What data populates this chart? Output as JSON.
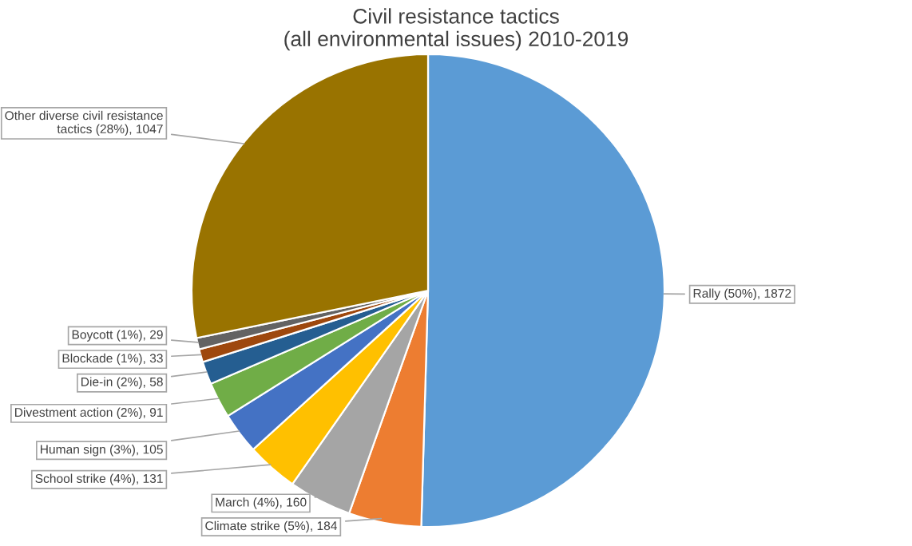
{
  "chart_data": {
    "type": "pie",
    "title": "Civil resistance tactics\n(all environmental issues) 2010-2019",
    "categories": [
      "Rally",
      "Climate strike",
      "March",
      "School strike",
      "Human sign",
      "Divestment action",
      "Die-in",
      "Blockade",
      "Boycott",
      "Other diverse civil resistance\ntactics"
    ],
    "values": [
      1872,
      184,
      160,
      131,
      105,
      91,
      58,
      33,
      29,
      1047
    ],
    "value_labels": [
      "(50%), 1872",
      "(5%), 184",
      "(4%), 160",
      "(4%), 131",
      "(3%), 105",
      "(2%), 91",
      "(2%), 58",
      "(1%), 33",
      "(1%), 29",
      "(28%), 1047"
    ],
    "colors": [
      "#5b9bd5",
      "#ed7d31",
      "#a5a5a5",
      "#ffc000",
      "#4472c4",
      "#70ad47",
      "#255e91",
      "#9e480e",
      "#636363",
      "#997300"
    ],
    "legend": false
  }
}
